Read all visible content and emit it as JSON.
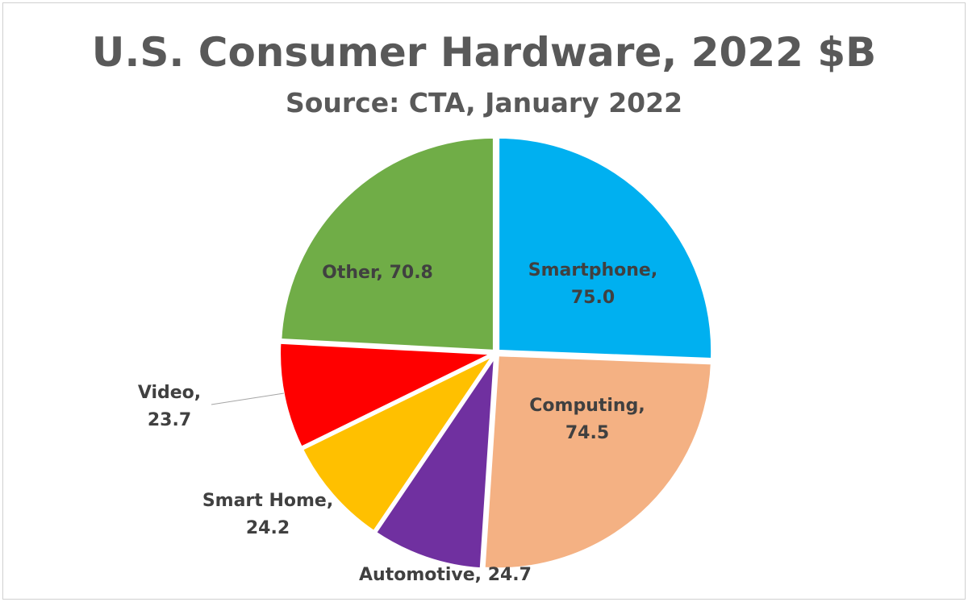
{
  "chart_data": {
    "type": "pie",
    "title": "U.S. Consumer Hardware, 2022 $B",
    "subtitle": "Source: CTA, January 2022",
    "start": "12 o'clock, clockwise",
    "slices": [
      {
        "label": "Smartphone",
        "value": 75.0,
        "display": "75.0",
        "color": "#00B0F0"
      },
      {
        "label": "Computing",
        "value": 74.5,
        "display": "74.5",
        "color": "#F4B183"
      },
      {
        "label": "Automotive",
        "value": 24.7,
        "display": "24.7",
        "color": "#7030A0"
      },
      {
        "label": "Smart Home",
        "value": 24.2,
        "display": "24.2",
        "color": "#FFC000"
      },
      {
        "label": "Video",
        "value": 23.7,
        "display": "23.7",
        "color": "#FF0000"
      },
      {
        "label": "Other",
        "value": 70.8,
        "display": "70.8",
        "color": "#70AD47"
      }
    ]
  }
}
